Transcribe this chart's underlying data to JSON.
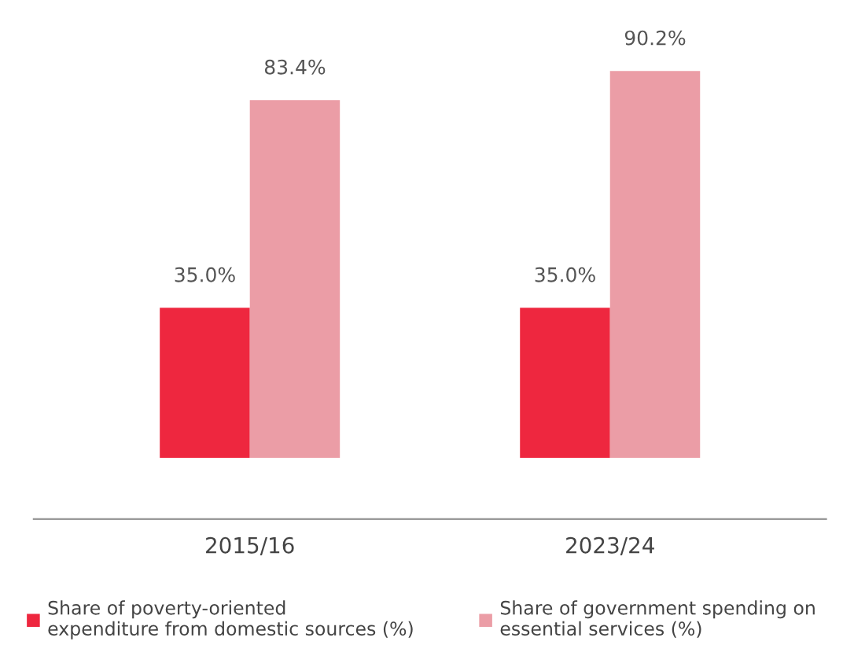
{
  "chart_data": {
    "type": "bar",
    "categories": [
      "2015/16",
      "2023/24"
    ],
    "series": [
      {
        "name": "Share of poverty-oriented\nexpenditure from domestic sources (%)",
        "color": "#ee273f",
        "values": [
          35.0,
          35.0
        ],
        "value_labels": [
          "35.0%",
          "35.0%"
        ]
      },
      {
        "name": "Share of government spending on\nessential services (%)",
        "color": "#eb9da6",
        "values": [
          83.4,
          90.2
        ],
        "value_labels": [
          "83.4%",
          "90.2%"
        ]
      }
    ],
    "legend": "bottom",
    "grid": false
  }
}
